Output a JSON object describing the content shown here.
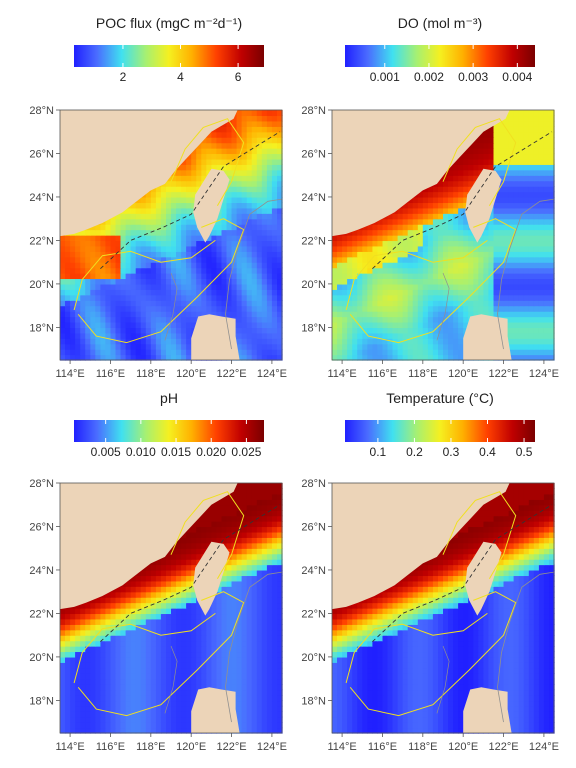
{
  "chart_data": [
    {
      "type": "heatmap",
      "title": "POC flux (mgC m⁻²d⁻¹)",
      "colorbar": {
        "ticks": [
          "2",
          "4",
          "6"
        ],
        "tick_values": [
          2,
          4,
          6
        ],
        "range": [
          0.3,
          6.9
        ],
        "colors": "blue-cyan-yellow-red-darkred"
      },
      "x_ticks": [
        "114°E",
        "116°E",
        "118°E",
        "120°E",
        "122°E",
        "124°E"
      ],
      "y_ticks": [
        "18°N",
        "20°N",
        "22°N",
        "24°N",
        "26°N",
        "28°N"
      ],
      "xlim": [
        113.5,
        124.5
      ],
      "ylim": [
        16.5,
        28
      ]
    },
    {
      "type": "heatmap",
      "title": "DO (mol m⁻³)",
      "colorbar": {
        "ticks": [
          "0.001",
          "0.002",
          "0.003",
          "0.004"
        ],
        "tick_values": [
          0.001,
          0.002,
          0.003,
          0.004
        ],
        "range": [
          0.0001,
          0.0044
        ],
        "colors": "blue-cyan-yellow-red-darkred"
      },
      "x_ticks": [
        "114°E",
        "116°E",
        "118°E",
        "120°E",
        "122°E",
        "124°E"
      ],
      "y_ticks": [
        "18°N",
        "20°N",
        "22°N",
        "24°N",
        "26°N",
        "28°N"
      ],
      "xlim": [
        113.5,
        124.5
      ],
      "ylim": [
        16.5,
        28
      ]
    },
    {
      "type": "heatmap",
      "title": "pH",
      "colorbar": {
        "ticks": [
          "0.005",
          "0.010",
          "0.015",
          "0.020",
          "0.025"
        ],
        "tick_values": [
          0.005,
          0.01,
          0.015,
          0.02,
          0.025
        ],
        "range": [
          0.0005,
          0.0275
        ],
        "colors": "blue-cyan-yellow-red-darkred"
      },
      "x_ticks": [
        "114°E",
        "116°E",
        "118°E",
        "120°E",
        "122°E",
        "124°E"
      ],
      "y_ticks": [
        "18°N",
        "20°N",
        "22°N",
        "24°N",
        "26°N",
        "28°N"
      ],
      "xlim": [
        113.5,
        124.5
      ],
      "ylim": [
        16.5,
        28
      ]
    },
    {
      "type": "heatmap",
      "title": "Temperature (°C)",
      "colorbar": {
        "ticks": [
          "0.1",
          "0.2",
          "0.3",
          "0.4",
          "0.5"
        ],
        "tick_values": [
          0.1,
          0.2,
          0.3,
          0.4,
          0.5
        ],
        "range": [
          0.01,
          0.53
        ],
        "colors": "blue-cyan-yellow-red-darkred"
      },
      "x_ticks": [
        "114°E",
        "116°E",
        "118°E",
        "120°E",
        "122°E",
        "124°E"
      ],
      "y_ticks": [
        "18°N",
        "20°N",
        "22°N",
        "24°N",
        "26°N",
        "28°N"
      ],
      "xlim": [
        113.5,
        124.5
      ],
      "ylim": [
        16.5,
        28
      ]
    }
  ],
  "colors": {
    "land": "#ecd4b8",
    "gradient": [
      "#2020ff",
      "#4a6cff",
      "#40e0f0",
      "#a8f070",
      "#f5f020",
      "#ffb000",
      "#ff4000",
      "#c00000",
      "#7a0000"
    ],
    "contour_yellow": "#f0e020",
    "contour_grey": "#909090"
  }
}
